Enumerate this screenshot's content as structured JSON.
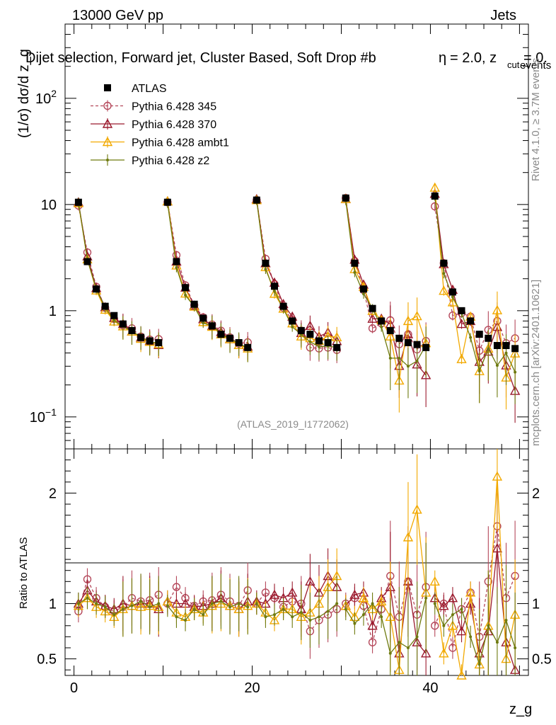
{
  "header": {
    "energy": "13000 GeV pp",
    "category": "Jets",
    "selection": "Dijet selection, Forward jet, Cluster Based, Soft Drop #b",
    "selection_rest": "= 2.0, z",
    "selection_sub": "cut",
    "selection_end": "= 0.",
    "events_overlap": "events",
    "eta_symbol": "η"
  },
  "side_labels": {
    "rivet": "Rivet 4.1.0, ≥ 3.7M events",
    "mcplots": "mcplots.cern.ch [arXiv:2401.10621]"
  },
  "analysis_id": "(ATLAS_2019_I1772062)",
  "colors": {
    "atlas": "#000000",
    "p345": "#b5485b",
    "p370": "#9b1b2e",
    "ambt1": "#f2a900",
    "z2": "#6e7a0f"
  },
  "chart_data": {
    "type": "scatter",
    "title": "Dijet selection, Forward jet, Cluster Based, Soft Drop",
    "xlabel": "z_g",
    "ylabel": "(1/σ) dσ/d z_g",
    "ratio_ylabel": "Ratio to ATLAS",
    "xlim": [
      -1,
      51
    ],
    "ylim": [
      0.05,
      500
    ],
    "ratio_ylim": [
      0.35,
      2.4
    ],
    "x_ticks": [
      "0",
      "20",
      "40"
    ],
    "y_ticks": [
      "10^-1",
      "1",
      "10",
      "10^2"
    ],
    "ratio_ticks": [
      "0.5",
      "1",
      "2"
    ],
    "x": [
      0.5,
      1.5,
      2.5,
      3.5,
      4.5,
      5.5,
      6.5,
      7.5,
      8.5,
      9.5,
      10.5,
      11.5,
      12.5,
      13.5,
      14.5,
      15.5,
      16.5,
      17.5,
      18.5,
      19.5,
      20.5,
      21.5,
      22.5,
      23.5,
      24.5,
      25.5,
      26.5,
      27.5,
      28.5,
      29.5,
      30.5,
      31.5,
      32.5,
      33.5,
      34.5,
      35.5,
      36.5,
      37.5,
      38.5,
      39.5,
      40.5,
      41.5,
      42.5,
      43.5,
      44.5,
      45.5,
      46.5,
      47.5,
      48.5,
      49.5
    ],
    "atlas": [
      10.5,
      2.9,
      1.6,
      1.1,
      0.9,
      0.75,
      0.65,
      0.56,
      0.52,
      0.5,
      10.5,
      2.9,
      1.65,
      1.15,
      0.85,
      0.72,
      0.6,
      0.55,
      0.5,
      0.45,
      11.0,
      2.8,
      1.7,
      1.1,
      0.8,
      0.65,
      0.6,
      0.52,
      0.5,
      0.45,
      11.5,
      2.8,
      1.6,
      1.05,
      0.8,
      0.65,
      0.55,
      0.5,
      0.48,
      0.45,
      12.0,
      2.8,
      1.5,
      1.0,
      0.8,
      0.6,
      0.55,
      0.47,
      0.47,
      0.44
    ],
    "series": [
      {
        "name": "ATLAS",
        "key": "atlas",
        "marker": "square"
      },
      {
        "name": "Pythia 6.428 345",
        "key": "p345",
        "marker": "open-circle",
        "dashed": true,
        "ratio": [
          0.93,
          1.22,
          1.05,
          0.97,
          0.93,
          0.97,
          1.05,
          1.02,
          1.03,
          1.08,
          1.0,
          1.15,
          1.05,
          0.98,
          1.02,
          1.03,
          1.08,
          1.02,
          0.98,
          1.12,
          1.0,
          1.1,
          1.05,
          0.97,
          1.02,
          1.0,
          0.75,
          0.85,
          0.9,
          0.95,
          1.0,
          1.05,
          0.98,
          0.65,
          0.95,
          1.25,
          0.88,
          1.2,
          0.9,
          1.15,
          0.8,
          1.0,
          0.6,
          0.95,
          1.1,
          0.7,
          1.2,
          1.7,
          1.05,
          1.25
        ]
      },
      {
        "name": "Pythia 6.428 370",
        "key": "p370",
        "marker": "open-triangle",
        "ratio": [
          1.0,
          1.12,
          1.02,
          0.98,
          0.95,
          1.0,
          0.98,
          1.0,
          1.0,
          0.95,
          1.02,
          1.0,
          1.0,
          0.97,
          0.98,
          1.0,
          1.05,
          0.98,
          0.95,
          1.02,
          1.02,
          1.0,
          1.08,
          1.05,
          1.1,
          0.95,
          1.2,
          1.1,
          1.25,
          1.15,
          0.98,
          1.08,
          1.1,
          0.8,
          1.05,
          1.15,
          0.55,
          1.2,
          0.65,
          0.55,
          1.05,
          0.98,
          1.05,
          0.75,
          1.0,
          0.55,
          0.75,
          1.5,
          0.65,
          0.4
        ]
      },
      {
        "name": "Pythia 6.428 ambt1",
        "key": "ambt1",
        "marker": "open-triangle",
        "ratio": [
          0.98,
          1.05,
          0.97,
          0.93,
          0.88,
          0.95,
          0.98,
          0.97,
          0.98,
          0.97,
          1.02,
          0.92,
          0.88,
          0.95,
          0.92,
          0.98,
          1.0,
          0.98,
          0.95,
          0.98,
          1.0,
          0.92,
          0.85,
          0.95,
          0.95,
          0.88,
          0.92,
          1.0,
          1.15,
          1.25,
          0.98,
          0.88,
          1.05,
          0.95,
          1.02,
          0.88,
          0.4,
          1.6,
          1.85,
          1.1,
          1.2,
          0.55,
          0.8,
          0.35,
          1.1,
          0.45,
          0.8,
          2.15,
          0.5,
          0.9
        ]
      },
      {
        "name": "Pythia 6.428 z2",
        "key": "z2",
        "marker": "dot",
        "ratio": [
          1.0,
          1.05,
          1.0,
          0.97,
          0.9,
          0.95,
          0.98,
          1.02,
          0.97,
          1.0,
          0.98,
          0.88,
          0.85,
          0.95,
          0.9,
          1.0,
          1.02,
          0.97,
          1.0,
          0.97,
          1.0,
          0.88,
          0.9,
          0.95,
          0.88,
          0.92,
          0.85,
          0.88,
          0.93,
          1.0,
          0.95,
          0.82,
          0.9,
          1.0,
          0.88,
          0.55,
          0.65,
          0.6,
          0.7,
          1.05,
          1.0,
          0.8,
          0.9,
          0.95,
          0.7,
          0.45,
          0.8,
          0.65,
          0.85,
          0.6
        ]
      }
    ]
  }
}
